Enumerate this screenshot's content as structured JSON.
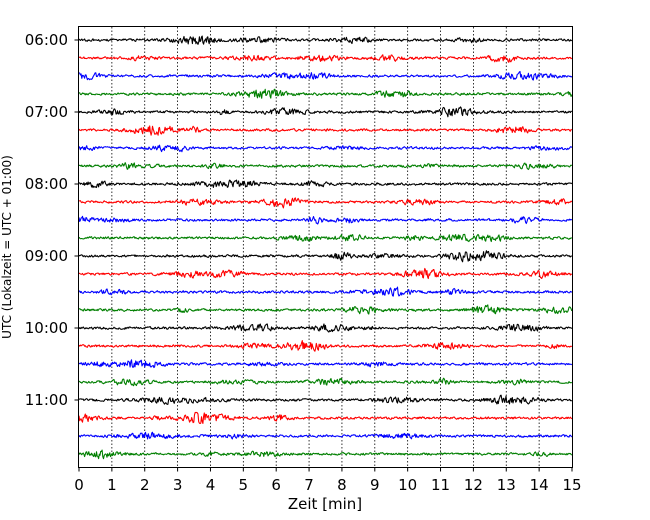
{
  "chart_data": {
    "type": "line",
    "title": "",
    "xlabel": "Zeit  [min]",
    "ylabel": "UTC (Lokalzeit = UTC + 01:00)",
    "xlim": [
      0,
      15
    ],
    "x_ticks": [
      "0",
      "1",
      "2",
      "3",
      "4",
      "5",
      "6",
      "7",
      "8",
      "9",
      "10",
      "11",
      "12",
      "13",
      "14",
      "15"
    ],
    "y_ticks": [
      "06:00",
      "07:00",
      "08:00",
      "09:00",
      "10:00",
      "11:00"
    ],
    "grid": "vertical dotted",
    "trace_interval_minutes": 15,
    "traces": [
      {
        "start": "06:00",
        "color": "#000000"
      },
      {
        "start": "06:15",
        "color": "#ff0000"
      },
      {
        "start": "06:30",
        "color": "#0000ff"
      },
      {
        "start": "06:45",
        "color": "#007f00"
      },
      {
        "start": "07:00",
        "color": "#000000"
      },
      {
        "start": "07:15",
        "color": "#ff0000"
      },
      {
        "start": "07:30",
        "color": "#0000ff"
      },
      {
        "start": "07:45",
        "color": "#007f00"
      },
      {
        "start": "08:00",
        "color": "#000000"
      },
      {
        "start": "08:15",
        "color": "#ff0000"
      },
      {
        "start": "08:30",
        "color": "#0000ff"
      },
      {
        "start": "08:45",
        "color": "#007f00"
      },
      {
        "start": "09:00",
        "color": "#000000"
      },
      {
        "start": "09:15",
        "color": "#ff0000"
      },
      {
        "start": "09:30",
        "color": "#0000ff"
      },
      {
        "start": "09:45",
        "color": "#007f00"
      },
      {
        "start": "10:00",
        "color": "#000000"
      },
      {
        "start": "10:15",
        "color": "#ff0000"
      },
      {
        "start": "10:30",
        "color": "#0000ff"
      },
      {
        "start": "10:45",
        "color": "#007f00"
      },
      {
        "start": "11:00",
        "color": "#000000"
      },
      {
        "start": "11:15",
        "color": "#ff0000"
      },
      {
        "start": "11:30",
        "color": "#0000ff"
      },
      {
        "start": "11:45",
        "color": "#007f00"
      }
    ]
  }
}
